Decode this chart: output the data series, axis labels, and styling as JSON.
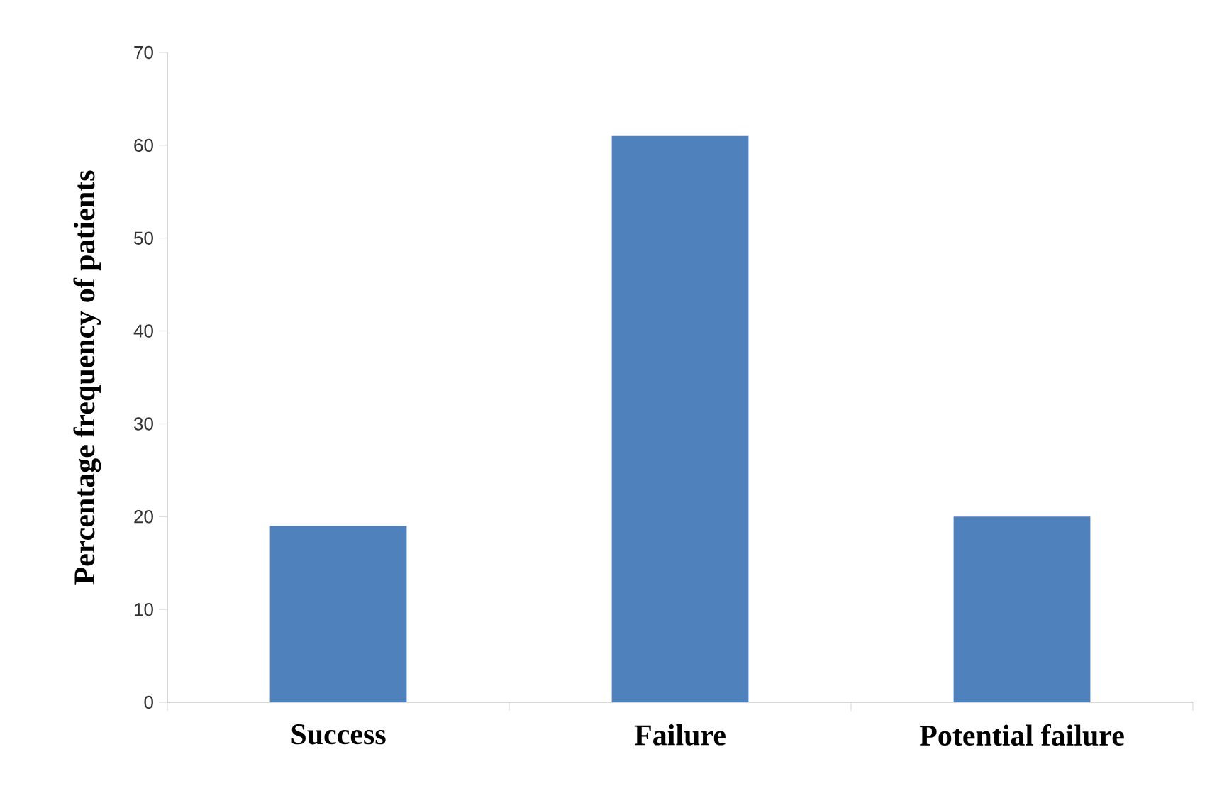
{
  "chart_data": {
    "type": "bar",
    "ylabel": "Percentage frequency of patients",
    "categories": [
      "Success",
      "Failure",
      "Potential failure"
    ],
    "values": [
      19,
      61,
      20
    ],
    "color": "#4f81bd",
    "ylim": [
      0,
      70
    ],
    "yticks": [
      0,
      10,
      20,
      30,
      40,
      50,
      60,
      70
    ],
    "grid": false
  }
}
